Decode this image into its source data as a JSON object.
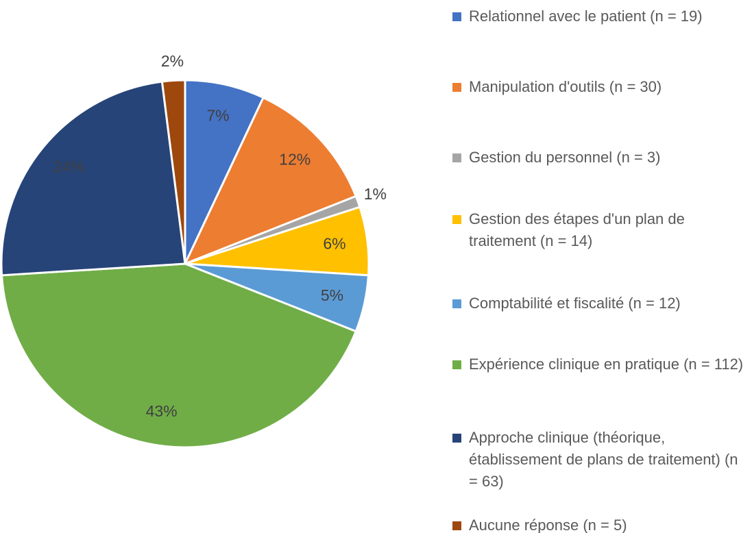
{
  "chart_data": {
    "type": "pie",
    "categories": [
      "Relationnel avec le patient (n = 19)",
      "Manipulation d'outils (n = 30)",
      "Gestion du personnel (n = 3)",
      "Gestion des étapes d'un plan de traitement (n = 14)",
      "Comptabilité et fiscalité (n = 12)",
      "Expérience clinique en pratique (n = 112)",
      "Approche clinique (théorique, établissement de plans de traitement) (n = 63)",
      "Aucune réponse (n = 5)"
    ],
    "values": [
      7,
      12,
      1,
      6,
      5,
      43,
      24,
      2
    ],
    "value_labels": [
      "7%",
      "12%",
      "1%",
      "6%",
      "5%",
      "43%",
      "24%",
      "2%"
    ],
    "colors": [
      "#4472c4",
      "#ed7d31",
      "#a5a5a5",
      "#ffc000",
      "#5b9bd5",
      "#70ad47",
      "#264478",
      "#9e480e"
    ],
    "legend": "right"
  }
}
